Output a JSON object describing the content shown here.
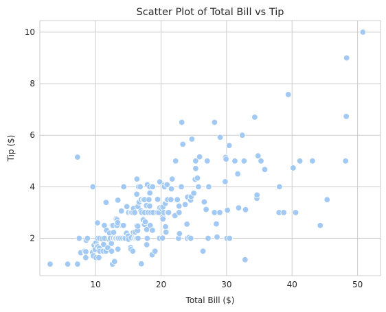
{
  "chart_data": {
    "type": "scatter",
    "title": "Scatter Plot of Total Bill vs Tip",
    "xlabel": "Total Bill ($)",
    "ylabel": "Tip ($)",
    "xlim": [
      1.5,
      53.5
    ],
    "ylim": [
      0.55,
      10.45
    ],
    "xticks": [
      10,
      20,
      30,
      40,
      50
    ],
    "yticks": [
      2,
      4,
      6,
      8,
      10
    ],
    "grid": true,
    "legend": "none",
    "point_color": "#a1c9f4",
    "grid_color": "#cccccc",
    "points": [
      [
        3.07,
        1.0
      ],
      [
        5.75,
        1.0
      ],
      [
        7.25,
        1.0
      ],
      [
        7.25,
        5.15
      ],
      [
        7.51,
        2.0
      ],
      [
        7.74,
        1.44
      ],
      [
        8.35,
        1.5
      ],
      [
        8.51,
        1.25
      ],
      [
        8.52,
        1.48
      ],
      [
        8.58,
        1.92
      ],
      [
        8.77,
        2.0
      ],
      [
        9.55,
        1.45
      ],
      [
        9.6,
        4.0
      ],
      [
        9.68,
        1.32
      ],
      [
        9.78,
        1.73
      ],
      [
        9.94,
        1.56
      ],
      [
        10.07,
        1.83
      ],
      [
        10.07,
        1.25
      ],
      [
        10.27,
        1.71
      ],
      [
        10.29,
        2.6
      ],
      [
        10.33,
        1.67
      ],
      [
        10.34,
        2.0
      ],
      [
        10.51,
        1.25
      ],
      [
        10.59,
        1.61
      ],
      [
        10.63,
        2.0
      ],
      [
        10.65,
        1.5
      ],
      [
        11.02,
        1.98
      ],
      [
        11.17,
        1.5
      ],
      [
        11.24,
        1.76
      ],
      [
        11.35,
        2.5
      ],
      [
        11.38,
        2.0
      ],
      [
        11.59,
        1.5
      ],
      [
        11.61,
        3.39
      ],
      [
        11.69,
        2.31
      ],
      [
        11.87,
        1.63
      ],
      [
        12.02,
        1.97
      ],
      [
        12.16,
        2.2
      ],
      [
        12.26,
        2.0
      ],
      [
        12.43,
        1.8
      ],
      [
        12.46,
        1.5
      ],
      [
        12.48,
        2.52
      ],
      [
        12.54,
        2.5
      ],
      [
        12.6,
        1.0
      ],
      [
        12.66,
        2.5
      ],
      [
        12.69,
        2.0
      ],
      [
        12.74,
        2.01
      ],
      [
        12.76,
        2.23
      ],
      [
        12.9,
        1.1
      ],
      [
        13.0,
        2.0
      ],
      [
        13.03,
        2.0
      ],
      [
        13.13,
        2.0
      ],
      [
        13.16,
        2.75
      ],
      [
        13.27,
        2.5
      ],
      [
        13.28,
        2.72
      ],
      [
        13.37,
        2.0
      ],
      [
        13.39,
        2.61
      ],
      [
        13.42,
        3.48
      ],
      [
        13.42,
        1.58
      ],
      [
        13.51,
        2.0
      ],
      [
        13.81,
        2.0
      ],
      [
        13.94,
        3.06
      ],
      [
        14.07,
        2.5
      ],
      [
        14.15,
        2.0
      ],
      [
        14.26,
        2.5
      ],
      [
        14.31,
        4.0
      ],
      [
        14.48,
        2.0
      ],
      [
        14.52,
        2.0
      ],
      [
        14.73,
        2.2
      ],
      [
        14.78,
        3.23
      ],
      [
        15.01,
        2.09
      ],
      [
        15.04,
        1.96
      ],
      [
        15.06,
        3.0
      ],
      [
        15.36,
        1.64
      ],
      [
        15.38,
        3.0
      ],
      [
        15.42,
        1.57
      ],
      [
        15.48,
        2.02
      ],
      [
        15.53,
        3.0
      ],
      [
        15.69,
        3.0
      ],
      [
        15.69,
        1.5
      ],
      [
        15.77,
        2.23
      ],
      [
        15.81,
        3.16
      ],
      [
        15.95,
        2.0
      ],
      [
        15.98,
        2.03
      ],
      [
        15.98,
        3.0
      ],
      [
        16.0,
        2.0
      ],
      [
        16.04,
        2.24
      ],
      [
        16.21,
        2.0
      ],
      [
        16.27,
        2.5
      ],
      [
        16.29,
        3.71
      ],
      [
        16.31,
        2.0
      ],
      [
        16.32,
        4.3
      ],
      [
        16.4,
        2.5
      ],
      [
        16.43,
        2.3
      ],
      [
        16.45,
        2.47
      ],
      [
        16.47,
        3.23
      ],
      [
        16.49,
        2.0
      ],
      [
        16.58,
        4.0
      ],
      [
        16.66,
        3.4
      ],
      [
        16.82,
        4.0
      ],
      [
        16.93,
        3.07
      ],
      [
        16.97,
        3.5
      ],
      [
        16.99,
        1.01
      ],
      [
        17.07,
        3.0
      ],
      [
        17.26,
        2.74
      ],
      [
        17.29,
        2.71
      ],
      [
        17.31,
        3.5
      ],
      [
        17.46,
        2.54
      ],
      [
        17.47,
        3.5
      ],
      [
        17.51,
        3.0
      ],
      [
        17.59,
        2.64
      ],
      [
        17.78,
        3.27
      ],
      [
        17.81,
        2.34
      ],
      [
        17.82,
        1.75
      ],
      [
        17.89,
        2.0
      ],
      [
        17.92,
        4.08
      ],
      [
        18.04,
        3.0
      ],
      [
        18.15,
        3.5
      ],
      [
        18.24,
        3.76
      ],
      [
        18.26,
        3.25
      ],
      [
        18.28,
        4.0
      ],
      [
        18.29,
        3.76
      ],
      [
        18.35,
        2.5
      ],
      [
        18.43,
        3.0
      ],
      [
        18.64,
        1.36
      ],
      [
        18.69,
        2.31
      ],
      [
        18.71,
        4.0
      ],
      [
        18.78,
        3.0
      ],
      [
        19.08,
        1.5
      ],
      [
        19.44,
        3.0
      ],
      [
        19.49,
        3.51
      ],
      [
        19.65,
        3.0
      ],
      [
        19.77,
        2.0
      ],
      [
        19.81,
        4.19
      ],
      [
        19.82,
        3.18
      ],
      [
        20.08,
        3.15
      ],
      [
        20.23,
        2.01
      ],
      [
        20.27,
        2.83
      ],
      [
        20.29,
        2.75
      ],
      [
        20.29,
        3.21
      ],
      [
        20.45,
        3.0
      ],
      [
        20.49,
        4.06
      ],
      [
        20.53,
        4.0
      ],
      [
        20.65,
        3.35
      ],
      [
        20.69,
        2.45
      ],
      [
        20.76,
        2.24
      ],
      [
        20.9,
        3.5
      ],
      [
        20.92,
        4.08
      ],
      [
        21.01,
        3.5
      ],
      [
        21.01,
        3.0
      ],
      [
        21.16,
        3.0
      ],
      [
        21.5,
        3.5
      ],
      [
        21.58,
        3.92
      ],
      [
        21.7,
        4.3
      ],
      [
        22.12,
        2.88
      ],
      [
        22.23,
        5.0
      ],
      [
        22.42,
        3.48
      ],
      [
        22.49,
        3.5
      ],
      [
        22.67,
        2.0
      ],
      [
        22.75,
        3.25
      ],
      [
        22.76,
        3.0
      ],
      [
        22.82,
        2.18
      ],
      [
        23.1,
        4.0
      ],
      [
        23.17,
        6.5
      ],
      [
        23.33,
        5.65
      ],
      [
        23.68,
        3.31
      ],
      [
        23.95,
        2.55
      ],
      [
        24.01,
        2.0
      ],
      [
        24.06,
        3.6
      ],
      [
        24.27,
        2.03
      ],
      [
        24.52,
        3.48
      ],
      [
        24.55,
        2.0
      ],
      [
        24.59,
        3.61
      ],
      [
        24.71,
        5.85
      ],
      [
        25.0,
        3.75
      ],
      [
        25.21,
        4.29
      ],
      [
        25.28,
        5.0
      ],
      [
        25.29,
        4.71
      ],
      [
        25.56,
        4.34
      ],
      [
        25.71,
        4.0
      ],
      [
        25.89,
        5.16
      ],
      [
        26.41,
        1.5
      ],
      [
        26.59,
        3.41
      ],
      [
        26.86,
        3.14
      ],
      [
        26.88,
        3.12
      ],
      [
        27.05,
        5.0
      ],
      [
        27.18,
        2.0
      ],
      [
        27.2,
        4.0
      ],
      [
        27.28,
        4.0
      ],
      [
        28.15,
        3.0
      ],
      [
        28.17,
        6.5
      ],
      [
        28.44,
        2.56
      ],
      [
        28.55,
        2.05
      ],
      [
        28.97,
        3.0
      ],
      [
        29.03,
        5.92
      ],
      [
        29.8,
        4.2
      ],
      [
        29.85,
        5.14
      ],
      [
        29.93,
        5.07
      ],
      [
        30.06,
        2.0
      ],
      [
        30.14,
        3.09
      ],
      [
        30.4,
        5.6
      ],
      [
        30.46,
        2.0
      ],
      [
        31.27,
        5.0
      ],
      [
        31.71,
        4.5
      ],
      [
        31.85,
        3.18
      ],
      [
        32.4,
        6.0
      ],
      [
        32.68,
        5.0
      ],
      [
        32.83,
        1.17
      ],
      [
        32.9,
        3.11
      ],
      [
        34.3,
        6.7
      ],
      [
        34.63,
        3.55
      ],
      [
        34.65,
        3.68
      ],
      [
        34.81,
        5.2
      ],
      [
        35.26,
        5.0
      ],
      [
        35.83,
        4.67
      ],
      [
        38.01,
        3.0
      ],
      [
        38.07,
        4.0
      ],
      [
        38.73,
        3.0
      ],
      [
        39.42,
        7.58
      ],
      [
        40.17,
        4.73
      ],
      [
        40.55,
        3.0
      ],
      [
        41.19,
        5.0
      ],
      [
        43.11,
        5.0
      ],
      [
        44.3,
        2.5
      ],
      [
        45.35,
        3.5
      ],
      [
        48.17,
        5.0
      ],
      [
        48.27,
        6.73
      ],
      [
        48.33,
        9.0
      ],
      [
        50.81,
        10.0
      ]
    ]
  }
}
